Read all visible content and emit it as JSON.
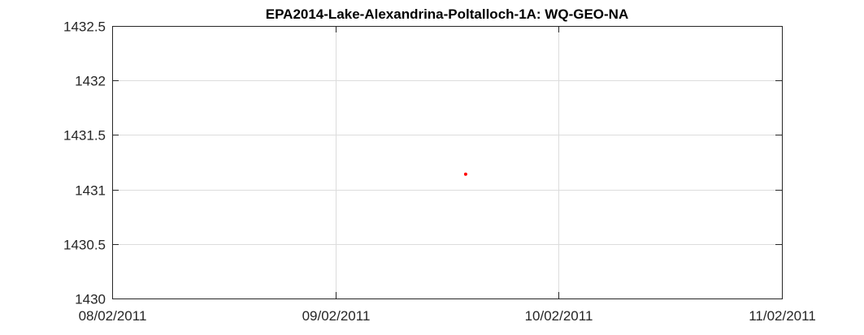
{
  "chart_data": {
    "type": "scatter",
    "title": "EPA2014-Lake-Alexandrina-Poltalloch-1A: WQ-GEO-NA",
    "xlabel": "",
    "ylabel": "",
    "x_axis": {
      "kind": "date",
      "range": [
        "08/02/2011",
        "11/02/2011"
      ],
      "ticks": [
        "08/02/2011",
        "09/02/2011",
        "10/02/2011",
        "11/02/2011"
      ]
    },
    "y_axis": {
      "range": [
        1430,
        1432.5
      ],
      "ticks": [
        "1430",
        "1430.5",
        "1431",
        "1431.5",
        "1432",
        "1432.5"
      ]
    },
    "grid": true,
    "series": [
      {
        "color": "#ff0000",
        "marker": "dot",
        "points": [
          {
            "x": "09/02/2011 14:00",
            "y": 1431.14
          }
        ]
      }
    ]
  }
}
